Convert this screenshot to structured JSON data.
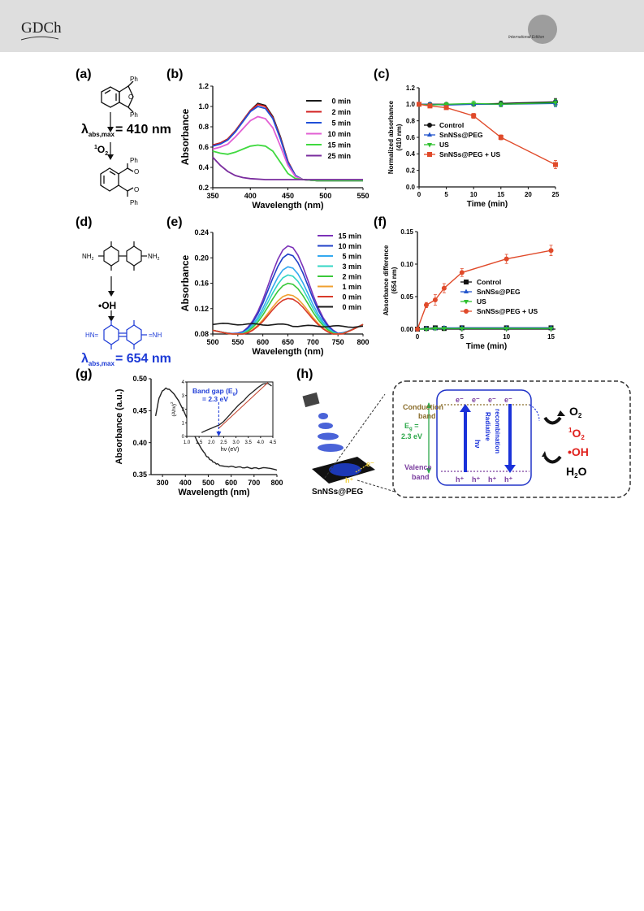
{
  "header": {
    "logo": "GDCh",
    "edition": "International Edition"
  },
  "panels": {
    "a": {
      "label": "(a)",
      "ph": "Ph",
      "ring_o": "O",
      "lambda_sym": "λ",
      "lambda_sub": "abs,max",
      "lambda_val": "= 410 nm",
      "reagent_sup": "1",
      "reagent": "O",
      "reagent_sub": "2"
    },
    "b": {
      "label": "(b)"
    },
    "c": {
      "label": "(c)"
    },
    "d": {
      "label": "(d)",
      "nh2": "NH",
      "nh2_sub": "2",
      "nh": "NH",
      "hn": "HN=",
      "reagent": "•OH",
      "lambda_sym": "λ",
      "lambda_sub": "abs,max",
      "lambda_val": "= 654 nm"
    },
    "e": {
      "label": "(e)"
    },
    "f": {
      "label": "(f)"
    },
    "g": {
      "label": "(g)",
      "inset": {
        "xlabel": "hν (eV)",
        "ylabel": "(Ahν)",
        "ylabel_sup": "2",
        "xticks": [
          "1.0",
          "1.5",
          "2.0",
          "2.5",
          "3.0",
          "3.5",
          "4.0",
          "4.5"
        ],
        "yticks": [
          "0",
          "1",
          "2",
          "3",
          "4"
        ],
        "annot1": "Band gap (E",
        "annot1_sub": "g",
        "annot1_end": ")",
        "annot2": "= 2.3 eV",
        "curve": [
          [
            1.6,
            0.28
          ],
          [
            1.8,
            0.45
          ],
          [
            2.0,
            0.6
          ],
          [
            2.2,
            0.75
          ],
          [
            2.3,
            0.82
          ],
          [
            2.5,
            1.1
          ],
          [
            2.7,
            1.5
          ],
          [
            2.9,
            1.9
          ],
          [
            3.1,
            2.3
          ],
          [
            3.3,
            2.6
          ],
          [
            3.5,
            3.0
          ],
          [
            3.7,
            3.3
          ],
          [
            3.9,
            3.6
          ],
          [
            4.1,
            3.85
          ],
          [
            4.3,
            3.9
          ],
          [
            4.45,
            3.7
          ]
        ],
        "fit": [
          [
            2.3,
            0.6
          ],
          [
            4.3,
            3.95
          ]
        ]
      }
    },
    "h": {
      "label": "(h)",
      "cb1": "Conduction",
      "cb2": "band",
      "vb1": "Valence",
      "vb2": "band",
      "eg1": "E",
      "eg_sub": "g",
      "eg_eq": " =",
      "eg2": "2.3 eV",
      "hv": "hν",
      "rad1": "Radiative",
      "rad2": "recombination",
      "electrons": [
        "e⁻",
        "e⁻",
        "e⁻",
        "e⁻"
      ],
      "holes": [
        "h⁺",
        "h⁺",
        "h⁺",
        "h⁺"
      ],
      "o2": "O",
      "o2_sub": "2",
      "so_sup": "1",
      "so": "O",
      "so_sub": "2",
      "oh": "•OH",
      "h2o": "H",
      "h2o_sub": "2",
      "h2o_end": "O",
      "material": "SnNSs@PEG",
      "hplus": "h⁺",
      "eminus": "e⁻"
    }
  },
  "chart_data": [
    {
      "panel": "b",
      "type": "line",
      "xlabel": "Wavelength (nm)",
      "ylabel": "Absorbance",
      "xlim": [
        350,
        550
      ],
      "ylim": [
        0.2,
        1.2
      ],
      "xticks": [
        350,
        400,
        450,
        500,
        550
      ],
      "yticks": [
        0.2,
        0.4,
        0.6,
        0.8,
        1.0,
        1.2
      ],
      "tick_decimals": 1,
      "legend": "top-right",
      "series": [
        {
          "name": "0 min",
          "color": "#1a1a1a",
          "points": [
            [
              350,
              0.62
            ],
            [
              360,
              0.64
            ],
            [
              370,
              0.68
            ],
            [
              380,
              0.76
            ],
            [
              390,
              0.86
            ],
            [
              400,
              0.96
            ],
            [
              410,
              1.03
            ],
            [
              420,
              1.01
            ],
            [
              430,
              0.9
            ],
            [
              440,
              0.7
            ],
            [
              450,
              0.46
            ],
            [
              460,
              0.32
            ],
            [
              470,
              0.28
            ],
            [
              490,
              0.27
            ],
            [
              550,
              0.27
            ]
          ]
        },
        {
          "name": "2 min",
          "color": "#d32020",
          "points": [
            [
              350,
              0.62
            ],
            [
              360,
              0.64
            ],
            [
              370,
              0.68
            ],
            [
              380,
              0.76
            ],
            [
              390,
              0.86
            ],
            [
              400,
              0.96
            ],
            [
              410,
              1.02
            ],
            [
              420,
              1.0
            ],
            [
              430,
              0.89
            ],
            [
              440,
              0.69
            ],
            [
              450,
              0.46
            ],
            [
              460,
              0.32
            ],
            [
              470,
              0.28
            ],
            [
              490,
              0.27
            ],
            [
              550,
              0.27
            ]
          ]
        },
        {
          "name": "5 min",
          "color": "#1f4fd8",
          "points": [
            [
              350,
              0.61
            ],
            [
              360,
              0.63
            ],
            [
              370,
              0.67
            ],
            [
              380,
              0.75
            ],
            [
              390,
              0.85
            ],
            [
              400,
              0.95
            ],
            [
              410,
              1.0
            ],
            [
              420,
              0.98
            ],
            [
              430,
              0.88
            ],
            [
              440,
              0.68
            ],
            [
              450,
              0.45
            ],
            [
              460,
              0.32
            ],
            [
              470,
              0.28
            ],
            [
              490,
              0.27
            ],
            [
              550,
              0.27
            ]
          ]
        },
        {
          "name": "10 min",
          "color": "#e25fd3",
          "points": [
            [
              350,
              0.58
            ],
            [
              360,
              0.6
            ],
            [
              370,
              0.63
            ],
            [
              380,
              0.7
            ],
            [
              390,
              0.78
            ],
            [
              400,
              0.86
            ],
            [
              410,
              0.9
            ],
            [
              420,
              0.88
            ],
            [
              430,
              0.79
            ],
            [
              440,
              0.61
            ],
            [
              450,
              0.42
            ],
            [
              460,
              0.31
            ],
            [
              470,
              0.28
            ],
            [
              490,
              0.27
            ],
            [
              550,
              0.27
            ]
          ]
        },
        {
          "name": "15 min",
          "color": "#3fd93f",
          "points": [
            [
              350,
              0.56
            ],
            [
              360,
              0.54
            ],
            [
              370,
              0.53
            ],
            [
              380,
              0.55
            ],
            [
              390,
              0.58
            ],
            [
              400,
              0.61
            ],
            [
              410,
              0.62
            ],
            [
              420,
              0.61
            ],
            [
              430,
              0.56
            ],
            [
              440,
              0.45
            ],
            [
              450,
              0.34
            ],
            [
              460,
              0.29
            ],
            [
              470,
              0.28
            ],
            [
              490,
              0.27
            ],
            [
              550,
              0.27
            ]
          ]
        },
        {
          "name": "25 min",
          "color": "#7a2c9e",
          "points": [
            [
              350,
              0.5
            ],
            [
              360,
              0.42
            ],
            [
              370,
              0.36
            ],
            [
              380,
              0.32
            ],
            [
              390,
              0.3
            ],
            [
              400,
              0.29
            ],
            [
              420,
              0.28
            ],
            [
              450,
              0.28
            ],
            [
              500,
              0.28
            ],
            [
              550,
              0.28
            ]
          ]
        }
      ]
    },
    {
      "panel": "c",
      "type": "line",
      "xlabel": "Time (min)",
      "ylabel": "Normalized absorbance",
      "ylabel2": "(410 nm)",
      "xlim": [
        0,
        25
      ],
      "ylim": [
        0.0,
        1.2
      ],
      "xticks": [
        0,
        5,
        10,
        15,
        20,
        25
      ],
      "yticks": [
        0.0,
        0.2,
        0.4,
        0.6,
        0.8,
        1.0,
        1.2
      ],
      "tick_decimals": 1,
      "legend": "lower-left",
      "series": [
        {
          "name": "Control",
          "color": "#111111",
          "marker": "circle",
          "x": [
            0,
            2,
            5,
            10,
            15,
            25
          ],
          "y": [
            1.0,
            1.0,
            1.0,
            1.0,
            1.01,
            1.03
          ],
          "err": [
            0.01,
            0.02,
            0.02,
            0.02,
            0.03,
            0.04
          ]
        },
        {
          "name": "SnNSs@PEG",
          "color": "#2255cc",
          "marker": "triangle",
          "x": [
            0,
            2,
            5,
            10,
            15,
            25
          ],
          "y": [
            1.0,
            1.0,
            0.99,
            1.0,
            1.0,
            1.01
          ],
          "err": [
            0.01,
            0.02,
            0.02,
            0.02,
            0.03,
            0.04
          ]
        },
        {
          "name": "US",
          "color": "#2fc02f",
          "marker": "triangle-down",
          "x": [
            0,
            2,
            5,
            10,
            15,
            25
          ],
          "y": [
            1.0,
            0.99,
            1.0,
            1.01,
            1.0,
            1.02
          ],
          "err": [
            0.01,
            0.02,
            0.02,
            0.03,
            0.03,
            0.04
          ]
        },
        {
          "name": "SnNSs@PEG + US",
          "color": "#e04a2a",
          "marker": "square",
          "x": [
            0,
            2,
            5,
            10,
            15,
            25
          ],
          "y": [
            1.0,
            0.98,
            0.96,
            0.86,
            0.6,
            0.27
          ],
          "err": [
            0.01,
            0.02,
            0.02,
            0.03,
            0.03,
            0.05
          ]
        }
      ]
    },
    {
      "panel": "e",
      "type": "line",
      "xlabel": "Wavelength (nm)",
      "ylabel": "Absorbance",
      "xlim": [
        500,
        800
      ],
      "ylim": [
        0.08,
        0.24
      ],
      "xticks": [
        500,
        550,
        600,
        650,
        700,
        750,
        800
      ],
      "yticks": [
        0.08,
        0.12,
        0.16,
        0.2,
        0.24
      ],
      "tick_decimals": 2,
      "legend": "top-right",
      "series": [
        {
          "name": "15 min",
          "color": "#7b32b8",
          "peak": 0.219
        },
        {
          "name": "10 min",
          "color": "#2040c8",
          "peak": 0.206
        },
        {
          "name": "5 min",
          "color": "#35a9f0",
          "peak": 0.186
        },
        {
          "name": "3 min",
          "color": "#33d6c4",
          "peak": 0.173
        },
        {
          "name": "2 min",
          "color": "#3ac83a",
          "peak": 0.16
        },
        {
          "name": "1 min",
          "color": "#f0a030",
          "peak": 0.142
        },
        {
          "name": "0 min",
          "color": "#d83a2a",
          "peak": 0.136
        },
        {
          "name": "0 min",
          "color": "#1a1a1a",
          "baseline": true
        }
      ]
    },
    {
      "panel": "f",
      "type": "line",
      "xlabel": "Time (min)",
      "ylabel": "Absorbance difference",
      "ylabel2": "(654 nm)",
      "xlim": [
        0,
        15.5
      ],
      "ylim": [
        0.0,
        0.15
      ],
      "xticks": [
        0,
        5,
        10,
        15
      ],
      "yticks": [
        0.0,
        0.05,
        0.1,
        0.15
      ],
      "tick_decimals": 2,
      "legend": "lower-right",
      "series": [
        {
          "name": "Control",
          "color": "#111111",
          "marker": "square",
          "x": [
            0,
            1,
            2,
            3,
            5,
            10,
            15
          ],
          "y": [
            0.0,
            0.001,
            0.002,
            0.001,
            0.002,
            0.002,
            0.002
          ],
          "err": [
            0,
            0.001,
            0.001,
            0.001,
            0.001,
            0.001,
            0.001
          ]
        },
        {
          "name": "SnNSs@PEG",
          "color": "#2255cc",
          "marker": "triangle",
          "x": [
            0,
            1,
            2,
            3,
            5,
            10,
            15
          ],
          "y": [
            0.0,
            0.001,
            0.001,
            0.002,
            0.002,
            0.002,
            0.002
          ],
          "err": [
            0,
            0.001,
            0.001,
            0.001,
            0.001,
            0.001,
            0.001
          ]
        },
        {
          "name": "US",
          "color": "#2fc02f",
          "marker": "triangle-down",
          "x": [
            0,
            1,
            2,
            3,
            5,
            10,
            15
          ],
          "y": [
            0.0,
            0.0,
            0.001,
            0.001,
            0.001,
            0.001,
            0.001
          ],
          "err": [
            0,
            0.001,
            0.001,
            0.001,
            0.001,
            0.001,
            0.001
          ]
        },
        {
          "name": "SnNSs@PEG + US",
          "color": "#e04a2a",
          "marker": "circle",
          "x": [
            0,
            1,
            2,
            3,
            5,
            10,
            15
          ],
          "y": [
            0.0,
            0.037,
            0.045,
            0.063,
            0.087,
            0.108,
            0.121
          ],
          "err": [
            0,
            0.004,
            0.008,
            0.007,
            0.006,
            0.007,
            0.008
          ]
        }
      ]
    },
    {
      "panel": "g",
      "type": "line",
      "xlabel": "Wavelength (nm)",
      "ylabel": "Absorbance (a.u.)",
      "xlim": [
        250,
        800
      ],
      "ylim": [
        0.35,
        0.5
      ],
      "xticks": [
        300,
        400,
        500,
        600,
        700,
        800
      ],
      "yticks": [
        0.35,
        0.4,
        0.45,
        0.5
      ],
      "tick_decimals": 2,
      "series": [
        {
          "name": "",
          "color": "#222222",
          "points": [
            [
              270,
              0.442
            ],
            [
              285,
              0.47
            ],
            [
              300,
              0.481
            ],
            [
              315,
              0.485
            ],
            [
              330,
              0.483
            ],
            [
              350,
              0.476
            ],
            [
              370,
              0.466
            ],
            [
              390,
              0.452
            ],
            [
              410,
              0.436
            ],
            [
              430,
              0.419
            ],
            [
              450,
              0.403
            ],
            [
              470,
              0.39
            ],
            [
              490,
              0.38
            ],
            [
              510,
              0.373
            ],
            [
              530,
              0.368
            ],
            [
              550,
              0.365
            ],
            [
              580,
              0.363
            ],
            [
              620,
              0.362
            ],
            [
              660,
              0.361
            ],
            [
              700,
              0.36
            ],
            [
              740,
              0.36
            ],
            [
              770,
              0.359
            ],
            [
              800,
              0.357
            ]
          ]
        }
      ]
    }
  ]
}
